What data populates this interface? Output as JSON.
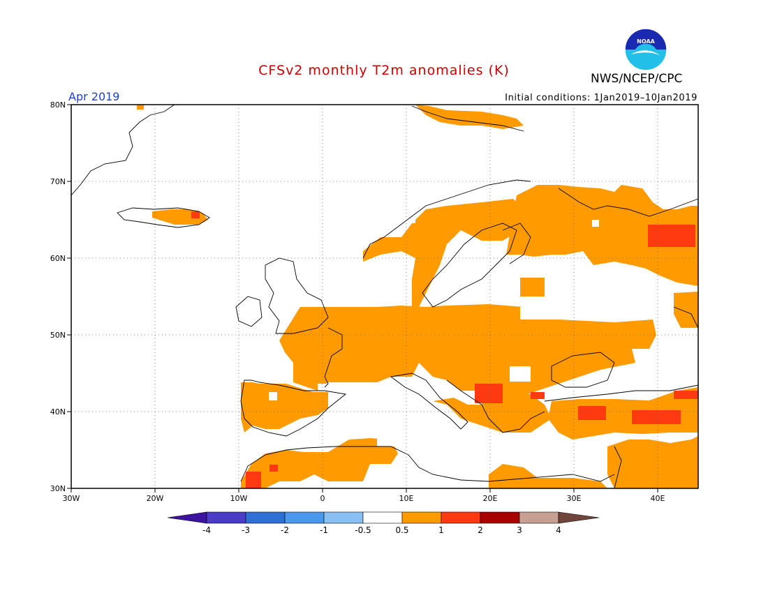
{
  "title": "CFSv2 monthly T2m anomalies (K)",
  "month": "Apr 2019",
  "initial_conditions": "Initial conditions: 1Jan2019–10Jan2019",
  "agency": "NWS/NCEP/CPC",
  "logo_text": "NOAA",
  "map": {
    "lon_range": [
      -30,
      45
    ],
    "lat_range": [
      30,
      80
    ],
    "lat_labels": [
      "30N",
      "40N",
      "50N",
      "60N",
      "70N",
      "80N"
    ],
    "lon_labels": [
      "30W",
      "20W",
      "10W",
      "0",
      "10E",
      "20E",
      "30E",
      "40E"
    ],
    "grid": true
  },
  "colorbar": {
    "tick_labels": [
      "-4",
      "-3",
      "-2",
      "-1",
      "-0.5",
      "0.5",
      "1",
      "2",
      "3",
      "4"
    ],
    "colors": [
      "#3c14a0",
      "#4a3cc8",
      "#2e6fd8",
      "#4a98ee",
      "#88c0f4",
      "#ffffff",
      "#ff9a00",
      "#ff3a10",
      "#a80000",
      "#c8a092",
      "#70463c"
    ]
  },
  "anomaly_colors": {
    "warm1": "#ff9a00",
    "warm2": "#ff3a10"
  }
}
